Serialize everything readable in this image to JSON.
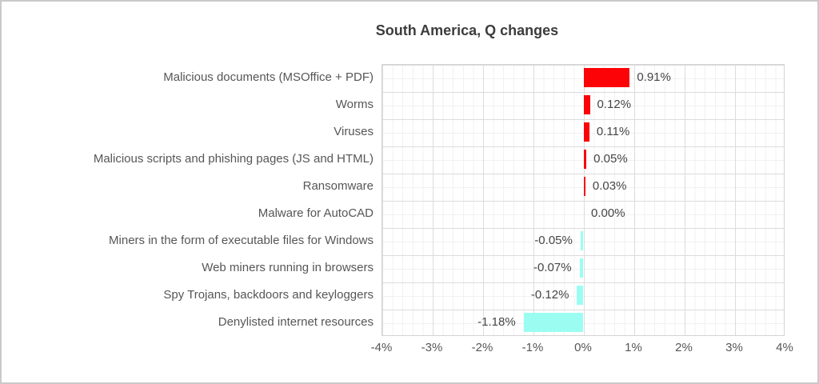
{
  "window": {
    "background_color": "#ffffff",
    "border_color": "#c9c9c9"
  },
  "chart_data": {
    "type": "bar",
    "orientation": "horizontal",
    "title": "South America, Q changes",
    "categories": [
      "Malicious documents (MSOffice + PDF)",
      "Worms",
      "Viruses",
      "Malicious scripts and phishing pages (JS and HTML)",
      "Ransomware",
      "Malware for AutoCAD",
      "Miners in the form of executable files for Windows",
      "Web miners running in browsers",
      "Spy Trojans, backdoors and keyloggers",
      "Denylisted internet resources"
    ],
    "values": [
      0.91,
      0.12,
      0.11,
      0.05,
      0.03,
      0.0,
      -0.05,
      -0.07,
      -0.12,
      -1.18
    ],
    "value_labels": [
      "0.91%",
      "0.12%",
      "0.11%",
      "0.05%",
      "0.03%",
      "0.00%",
      "-0.05%",
      "-0.07%",
      "-0.12%",
      "-1.18%"
    ],
    "xlabel": "",
    "ylabel": "",
    "xlim": [
      -4,
      4
    ],
    "x_tick_values": [
      -4,
      -3,
      -2,
      -1,
      0,
      1,
      2,
      3,
      4
    ],
    "x_tick_labels": [
      "-4%",
      "-3%",
      "-2%",
      "-1%",
      "0%",
      "1%",
      "2%",
      "3%",
      "4%"
    ],
    "grid": "major and minor gridlines, both axes",
    "legend": "none",
    "positive_bar_color": "#fb0307",
    "negative_bar_color": "#9bfdf1",
    "major_grid_color": "#dcdcdc",
    "minor_grid_color": "#f1f1f1",
    "title_color": "#3c3c3c",
    "label_color": "#565656",
    "value_label_color": "#454545"
  }
}
